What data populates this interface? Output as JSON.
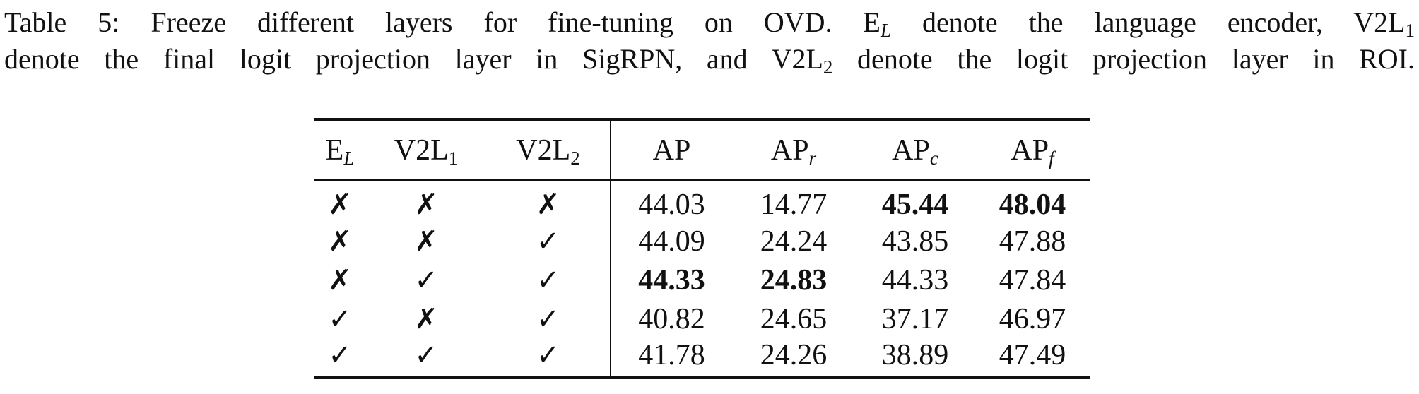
{
  "caption": {
    "label": "Table 5:",
    "text1": "Freeze different layers for fine-tuning on OVD. E",
    "sub1": "L",
    "text2": " denote the language encoder, V2L",
    "sub2": "1",
    "text3": "denote the final logit projection layer in SigRPN, and V2L",
    "sub3": "2",
    "text4": " denote the logit projection layer in ROI."
  },
  "table": {
    "headers": [
      {
        "base": "E",
        "sub": "L"
      },
      {
        "base": "V2L",
        "sub": "1"
      },
      {
        "base": "V2L",
        "sub": "2"
      },
      {
        "base": "AP",
        "sub": ""
      },
      {
        "base": "AP",
        "sub": "r"
      },
      {
        "base": "AP",
        "sub": "c"
      },
      {
        "base": "AP",
        "sub": "f"
      }
    ],
    "rows": [
      {
        "el": "✗",
        "v2l1": "✗",
        "v2l2": "✗",
        "ap": "44.03",
        "apr": "14.77",
        "apc": "45.44",
        "apf": "48.04"
      },
      {
        "el": "✗",
        "v2l1": "✗",
        "v2l2": "✓",
        "ap": "44.09",
        "apr": "24.24",
        "apc": "43.85",
        "apf": "47.88"
      },
      {
        "el": "✗",
        "v2l1": "✓",
        "v2l2": "✓",
        "ap": "44.33",
        "apr": "24.83",
        "apc": "44.33",
        "apf": "47.84"
      },
      {
        "el": "✓",
        "v2l1": "✗",
        "v2l2": "✓",
        "ap": "40.82",
        "apr": "24.65",
        "apc": "37.17",
        "apf": "46.97"
      },
      {
        "el": "✓",
        "v2l1": "✓",
        "v2l2": "✓",
        "ap": "41.78",
        "apr": "24.26",
        "apc": "38.89",
        "apf": "47.49"
      }
    ]
  }
}
